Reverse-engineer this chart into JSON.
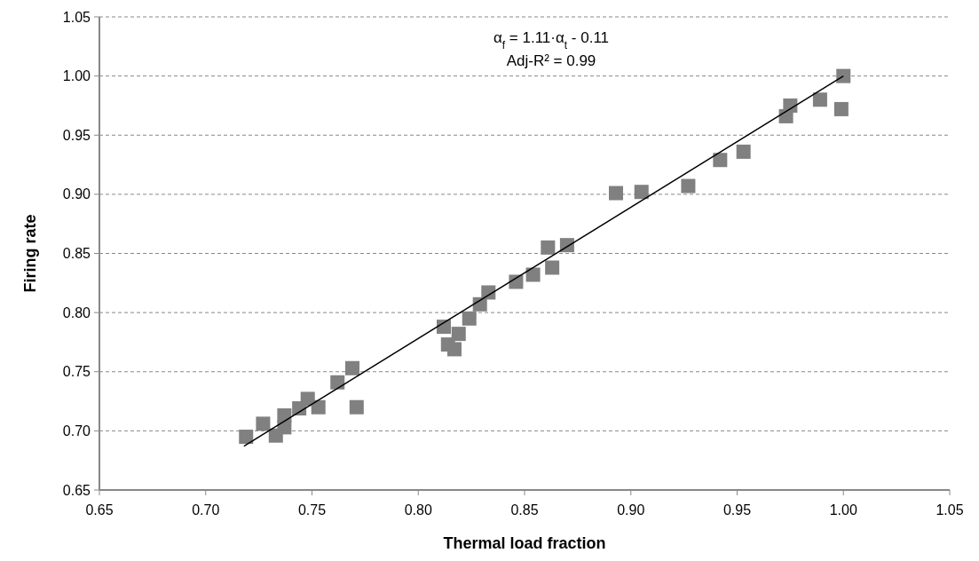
{
  "chart_data": {
    "type": "scatter",
    "xlabel": "Thermal load fraction",
    "ylabel": "Firing rate",
    "annotations": [
      "α$_{f}$ = 1.11·α$_{t}$ - 0.11",
      "Adj-R² = 0.99"
    ],
    "xlim": [
      0.65,
      1.05
    ],
    "ylim": [
      0.65,
      1.05
    ],
    "xticks": [
      {
        "value": 0.65,
        "label": "0.65"
      },
      {
        "value": 0.7,
        "label": "0.70"
      },
      {
        "value": 0.75,
        "label": "0.75"
      },
      {
        "value": 0.8,
        "label": "0.80"
      },
      {
        "value": 0.85,
        "label": "0.85"
      },
      {
        "value": 0.9,
        "label": "0.90"
      },
      {
        "value": 0.95,
        "label": "0.95"
      },
      {
        "value": 1.0,
        "label": "1.00"
      },
      {
        "value": 1.05,
        "label": "1.05"
      }
    ],
    "yticks": [
      {
        "value": 0.65,
        "label": "0.65"
      },
      {
        "value": 0.7,
        "label": "0.70"
      },
      {
        "value": 0.75,
        "label": "0.75"
      },
      {
        "value": 0.8,
        "label": "0.80"
      },
      {
        "value": 0.85,
        "label": "0.85"
      },
      {
        "value": 0.9,
        "label": "0.90"
      },
      {
        "value": 0.95,
        "label": "0.95"
      },
      {
        "value": 1.0,
        "label": "1.00"
      },
      {
        "value": 1.05,
        "label": "1.05"
      }
    ],
    "grid": "y",
    "series": [
      {
        "marker": "square",
        "color": "#808080",
        "x": [
          0.719,
          0.727,
          0.733,
          0.737,
          0.737,
          0.744,
          0.748,
          0.753,
          0.762,
          0.769,
          0.771,
          0.812,
          0.814,
          0.819,
          0.817,
          0.824,
          0.829,
          0.833,
          0.846,
          0.854,
          0.863,
          0.861,
          0.87,
          0.893,
          0.905,
          0.927,
          0.942,
          0.953,
          0.973,
          0.975,
          0.989,
          0.999,
          1.0
        ],
        "values": [
          0.695,
          0.706,
          0.696,
          0.713,
          0.703,
          0.719,
          0.727,
          0.72,
          0.741,
          0.753,
          0.72,
          0.788,
          0.773,
          0.782,
          0.769,
          0.795,
          0.807,
          0.817,
          0.826,
          0.832,
          0.838,
          0.855,
          0.857,
          0.901,
          0.902,
          0.907,
          0.929,
          0.936,
          0.966,
          0.975,
          0.98,
          0.972,
          1.0
        ]
      },
      {
        "type": "line",
        "marker": "none",
        "line_style": "solid",
        "color": "#000000",
        "x": [
          0.718,
          1.0
        ],
        "values": [
          0.687,
          1.0
        ]
      }
    ]
  }
}
